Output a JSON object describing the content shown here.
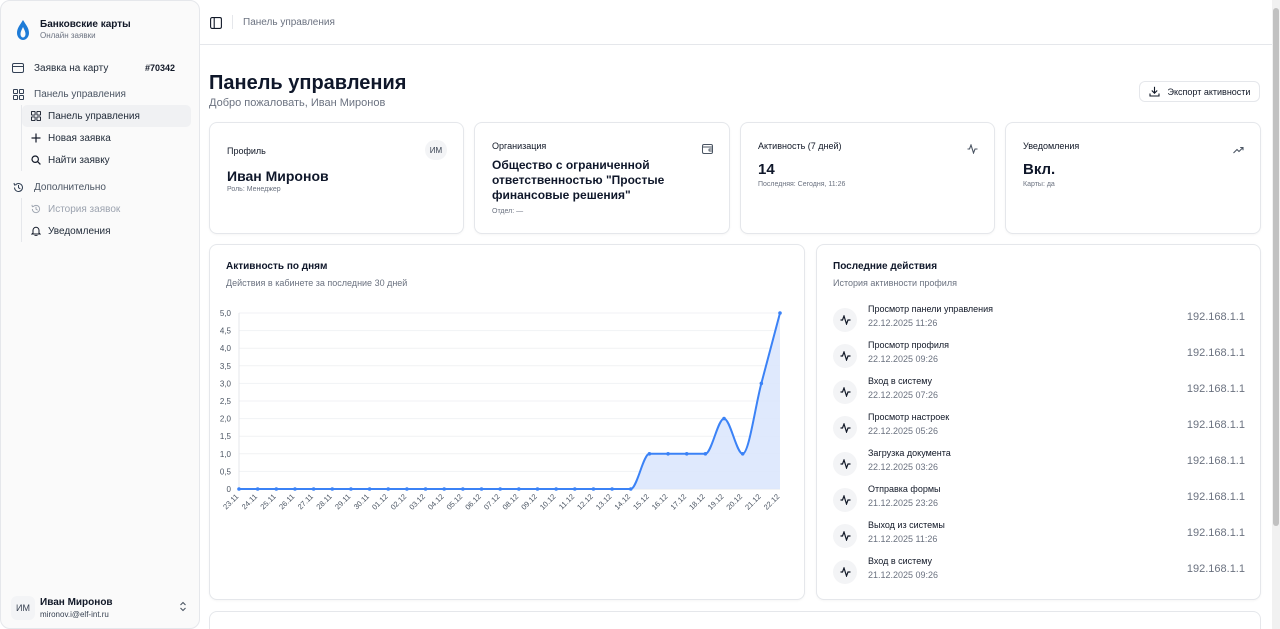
{
  "sidebar": {
    "brand_title": "Банковские карты",
    "brand_subtitle": "Онлайн заявки",
    "card_request_label": "Заявка на карту",
    "card_request_badge": "#70342",
    "group_dashboard": "Панель управления",
    "items_dashboard": [
      {
        "label": "Панель управления",
        "icon": "grid-icon"
      },
      {
        "label": "Новая заявка",
        "icon": "plus-icon"
      },
      {
        "label": "Найти заявку",
        "icon": "search-icon"
      }
    ],
    "group_extra": "Дополнительно",
    "items_extra": [
      {
        "label": "История заявок",
        "icon": "history-icon"
      },
      {
        "label": "Уведомления",
        "icon": "bell-icon"
      }
    ],
    "user": {
      "initials": "ИМ",
      "name": "Иван Миронов",
      "email": "mironov.i@elf-int.ru"
    }
  },
  "header": {
    "breadcrumb": "Панель управления"
  },
  "main": {
    "title": "Панель управления",
    "subtitle": "Добро пожаловать, Иван Миронов",
    "export_label": "Экспорт активности"
  },
  "cards": {
    "profile": {
      "label": "Профиль",
      "badge": "ИМ",
      "name": "Иван Миронов",
      "role": "Роль: Менеджер"
    },
    "org": {
      "label": "Организация",
      "name_lines": [
        "Общество с ограниченной",
        "ответственностью \"Простые",
        "финансовые решения\""
      ],
      "dept": "Отдел: —"
    },
    "activity": {
      "label": "Активность (7 дней)",
      "value": "14",
      "last": "Последняя: Сегодня, 11:26"
    },
    "notify": {
      "label": "Уведомления",
      "value": "Вкл.",
      "cards": "Карты: да"
    }
  },
  "chart_panel": {
    "title": "Активность по дням",
    "subtitle": "Действия в кабинете за последние 30 дней"
  },
  "chart_data": {
    "type": "area",
    "x": [
      "23.11",
      "24.11",
      "25.11",
      "26.11",
      "27.11",
      "28.11",
      "29.11",
      "30.11",
      "01.12",
      "02.12",
      "03.12",
      "04.12",
      "05.12",
      "06.12",
      "07.12",
      "08.12",
      "09.12",
      "10.12",
      "11.12",
      "12.12",
      "13.12",
      "14.12",
      "15.12",
      "16.12",
      "17.12",
      "18.12",
      "19.12",
      "20.12",
      "21.12",
      "22.12"
    ],
    "values": [
      0,
      0,
      0,
      0,
      0,
      0,
      0,
      0,
      0,
      0,
      0,
      0,
      0,
      0,
      0,
      0,
      0,
      0,
      0,
      0,
      0,
      0,
      1,
      1,
      1,
      1,
      2,
      1,
      3,
      5
    ],
    "yticks": [
      "0",
      "0,5",
      "1,0",
      "1,5",
      "2,0",
      "2,5",
      "3,0",
      "3,5",
      "4,0",
      "4,5",
      "5,0"
    ],
    "ylim": [
      0,
      5
    ],
    "grid": true,
    "colors": {
      "line": "#3b82f6",
      "fill": "#dbe7fd"
    }
  },
  "recent": {
    "title": "Последние действия",
    "subtitle": "История активности профиля",
    "items": [
      {
        "name": "Просмотр панели управления",
        "time": "22.12.2025 11:26",
        "ip": "192.168.1.1"
      },
      {
        "name": "Просмотр профиля",
        "time": "22.12.2025 09:26",
        "ip": "192.168.1.1"
      },
      {
        "name": "Вход в систему",
        "time": "22.12.2025 07:26",
        "ip": "192.168.1.1"
      },
      {
        "name": "Просмотр настроек",
        "time": "22.12.2025 05:26",
        "ip": "192.168.1.1"
      },
      {
        "name": "Загрузка документа",
        "time": "22.12.2025 03:26",
        "ip": "192.168.1.1"
      },
      {
        "name": "Отправка формы",
        "time": "21.12.2025 23:26",
        "ip": "192.168.1.1"
      },
      {
        "name": "Выход из системы",
        "time": "21.12.2025 11:26",
        "ip": "192.168.1.1"
      },
      {
        "name": "Вход в систему",
        "time": "21.12.2025 09:26",
        "ip": "192.168.1.1"
      }
    ]
  }
}
